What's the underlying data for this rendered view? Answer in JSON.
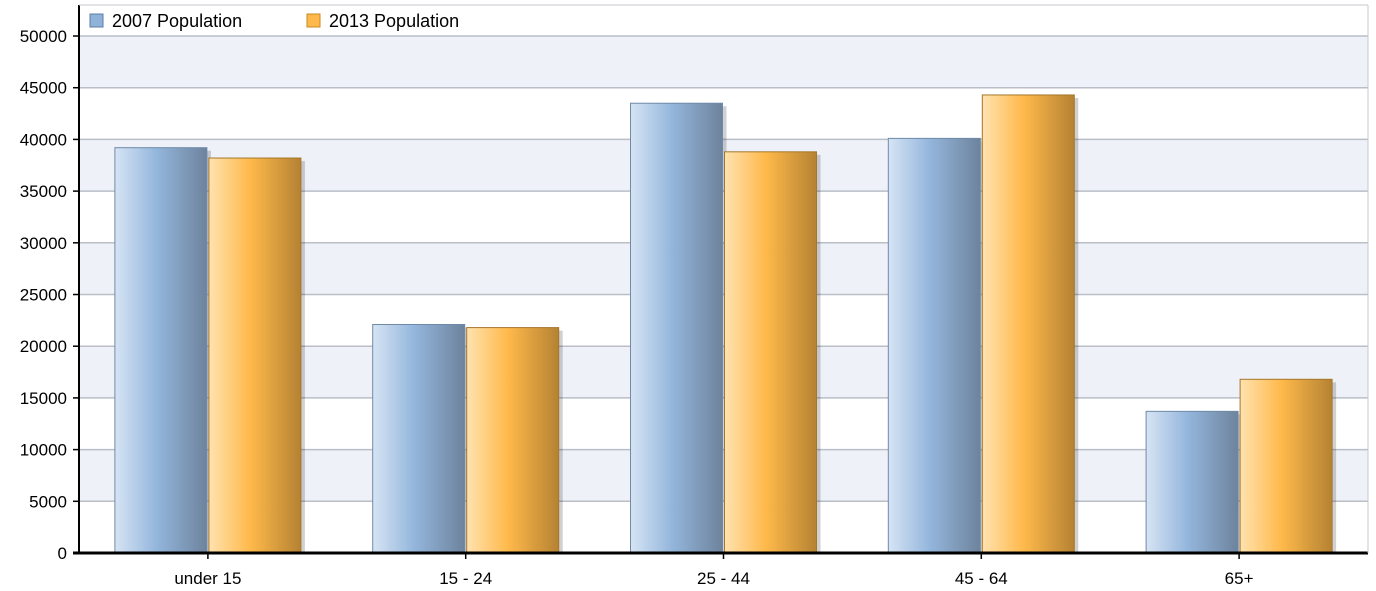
{
  "chart_data": {
    "type": "bar",
    "title": "",
    "xlabel": "",
    "ylabel": "",
    "categories": [
      "under 15",
      "15 - 24",
      "25 - 44",
      "45 - 64",
      "65+"
    ],
    "series": [
      {
        "name": "2007 Population",
        "values": [
          39200,
          22100,
          43500,
          40100,
          13700
        ]
      },
      {
        "name": "2013 Population",
        "values": [
          38200,
          21800,
          38800,
          44300,
          16800
        ]
      }
    ],
    "ylim": [
      0,
      53000
    ],
    "yticks": [
      0,
      5000,
      10000,
      15000,
      20000,
      25000,
      30000,
      35000,
      40000,
      45000,
      50000
    ],
    "grid": true,
    "legend_position": "top-left",
    "colors": {
      "series_2007": "#8fb2d8",
      "series_2013": "#ffb84a",
      "band_alt": "#eef2f8",
      "grid": "#b9bec7"
    }
  }
}
